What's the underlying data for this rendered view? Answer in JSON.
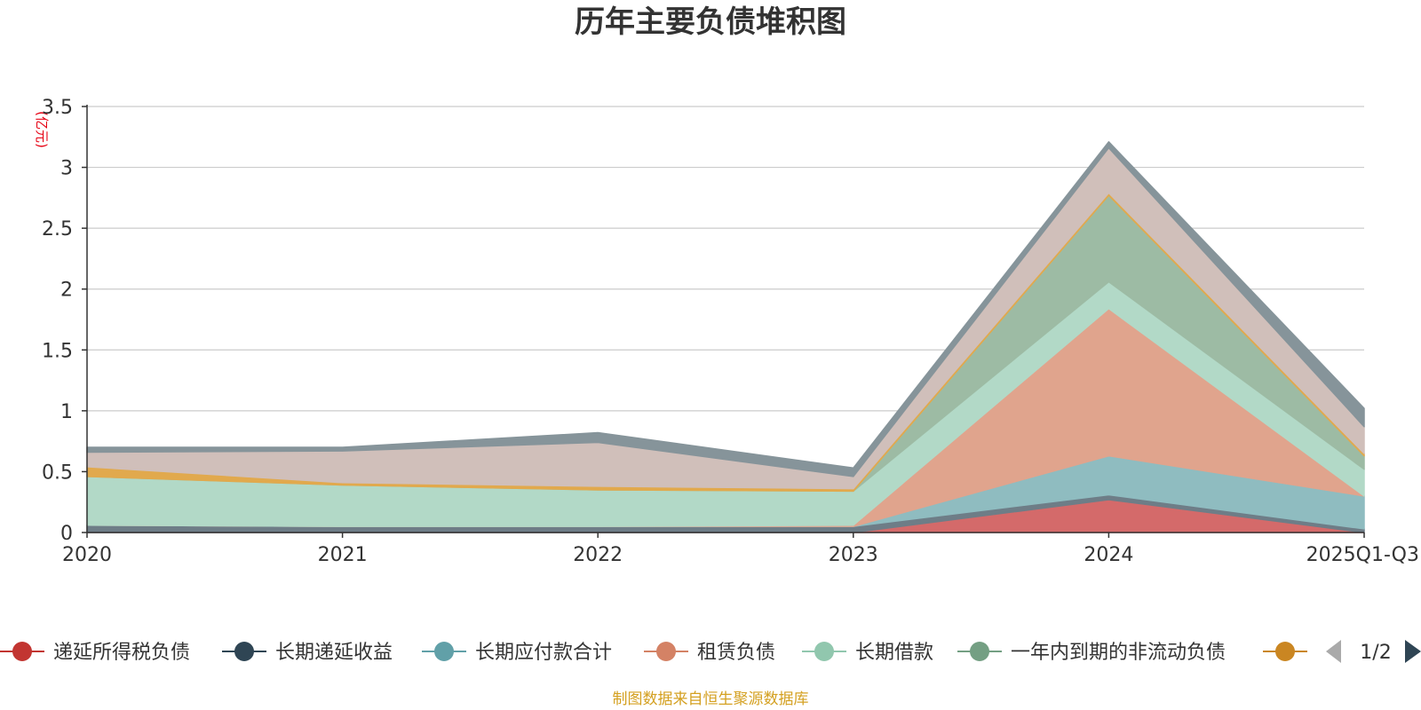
{
  "chart_data": {
    "type": "area",
    "stacked": true,
    "title": "历年主要负债堆积图",
    "unit_label": "(亿元)",
    "x": [
      "2020",
      "2021",
      "2022",
      "2023",
      "2024",
      "2025Q1-Q3"
    ],
    "y_ticks": [
      "0",
      "0.5",
      "1",
      "1.5",
      "2",
      "2.5",
      "3",
      "3.5"
    ],
    "ylim": [
      0,
      3.5
    ],
    "grid": true,
    "legend_position": "bottom",
    "series": [
      {
        "name": "递延所得税负债",
        "color": "#d46a6a",
        "values": [
          0.0,
          0.0,
          0.0,
          0.0,
          0.27,
          0.0
        ]
      },
      {
        "name": "长期递延收益",
        "color": "#6e7d87",
        "values": [
          0.06,
          0.05,
          0.05,
          0.05,
          0.04,
          0.03
        ]
      },
      {
        "name": "长期应付款合计",
        "color": "#8fbcc0",
        "values": [
          0.0,
          0.0,
          0.0,
          0.0,
          0.32,
          0.27
        ]
      },
      {
        "name": "租赁负债",
        "color": "#e0a48d",
        "values": [
          0.0,
          0.0,
          0.0,
          0.01,
          1.21,
          0.0
        ]
      },
      {
        "name": "长期借款",
        "color": "#b2d9c7",
        "values": [
          0.4,
          0.34,
          0.3,
          0.28,
          0.22,
          0.22
        ]
      },
      {
        "name": "一年内到期的非流动负债",
        "color": "#9dbba4",
        "values": [
          0.0,
          0.0,
          0.0,
          0.0,
          0.71,
          0.11
        ]
      },
      {
        "name": "",
        "color": "#e1a94d",
        "values": [
          0.08,
          0.02,
          0.03,
          0.02,
          0.02,
          0.02
        ]
      },
      {
        "name": "",
        "color": "#d0bfba",
        "values": [
          0.12,
          0.26,
          0.36,
          0.1,
          0.37,
          0.22
        ]
      },
      {
        "name": "",
        "color": "#86949a",
        "values": [
          0.04,
          0.03,
          0.08,
          0.07,
          0.05,
          0.15
        ]
      }
    ],
    "legend_markers": [
      {
        "color": "#c23531"
      },
      {
        "color": "#2f4554"
      },
      {
        "color": "#61a0a8"
      },
      {
        "color": "#d48265"
      },
      {
        "color": "#91c7ae"
      },
      {
        "color": "#749f83"
      },
      {
        "color": "#ca8622"
      }
    ],
    "legend_page": "1/2",
    "source_note": "制图数据来自恒生聚源数据库"
  }
}
